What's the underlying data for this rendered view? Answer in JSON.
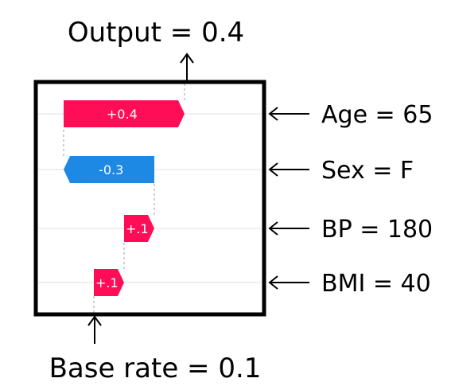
{
  "chart_data": {
    "type": "waterfall",
    "output_label": "Output = 0.4",
    "base_label": "Base rate = 0.1",
    "base_value": 0.1,
    "output_value": 0.4,
    "features": [
      {
        "name": "Age = 65",
        "contribution": 0.4,
        "label": "+0.4",
        "color": "#ff0d57"
      },
      {
        "name": "Sex = F",
        "contribution": -0.3,
        "label": "-0.3",
        "color": "#1e88e5"
      },
      {
        "name": "BP = 180",
        "contribution": 0.1,
        "label": "+.1",
        "color": "#ff0d57"
      },
      {
        "name": "BMI = 40",
        "contribution": 0.1,
        "label": "+.1",
        "color": "#ff0d57"
      }
    ]
  }
}
